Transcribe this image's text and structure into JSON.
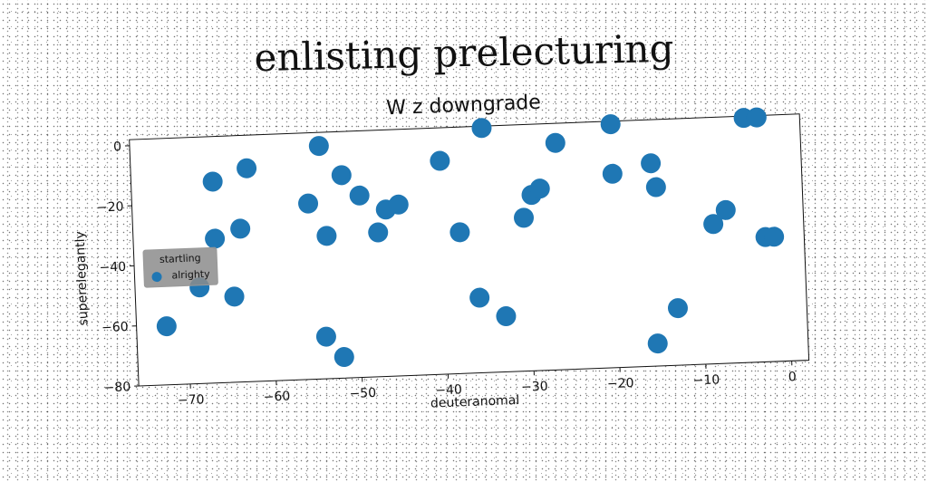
{
  "suptitle": "enlisting prelecturing",
  "chart_data": {
    "type": "scatter",
    "title": "W z downgrade",
    "xlabel": "deuteranomal",
    "ylabel": "superelegantly",
    "xlim": [
      -76,
      2
    ],
    "ylim": [
      -80,
      2
    ],
    "xticks": [
      -70,
      -60,
      -50,
      -40,
      -30,
      -20,
      -10,
      0
    ],
    "yticks": [
      0,
      -20,
      -40,
      -60,
      -80
    ],
    "grid": false,
    "legend": {
      "title": "startling",
      "position": "center-left"
    },
    "color": "#1f77b4",
    "series": [
      {
        "name": "alrighty",
        "points": [
          [
            -72.5,
            -60.5
          ],
          [
            -68.5,
            -48
          ],
          [
            -66.5,
            -13
          ],
          [
            -66.5,
            -32
          ],
          [
            -64.5,
            -51.5
          ],
          [
            -63.5,
            -29
          ],
          [
            -62.5,
            -9
          ],
          [
            -55.5,
            -21.5
          ],
          [
            -54,
            -2.5
          ],
          [
            -54,
            -66
          ],
          [
            -53.5,
            -32.5
          ],
          [
            -52,
            -73
          ],
          [
            -51.5,
            -12.5
          ],
          [
            -49.5,
            -19.5
          ],
          [
            -47.5,
            -32
          ],
          [
            -46.5,
            -24.5
          ],
          [
            -45,
            -23
          ],
          [
            -40,
            -9
          ],
          [
            -38,
            -33
          ],
          [
            -36,
            -55
          ],
          [
            -35,
            2
          ],
          [
            -33,
            -61.5
          ],
          [
            -30.5,
            -29
          ],
          [
            -29.5,
            -21.5
          ],
          [
            -28.5,
            -19.5
          ],
          [
            -26.5,
            -4.5
          ],
          [
            -20,
            1
          ],
          [
            -20,
            -15.5
          ],
          [
            -15.5,
            -12.5
          ],
          [
            -15.5,
            -72.5
          ],
          [
            -15,
            -20.5
          ],
          [
            -13,
            -61
          ],
          [
            -8.5,
            -33.5
          ],
          [
            -7,
            -29
          ],
          [
            -4.5,
            8.5
          ],
          [
            -3,
            9
          ],
          [
            -2.5,
            -38.5
          ],
          [
            -1.5,
            -38.5
          ]
        ]
      }
    ]
  }
}
